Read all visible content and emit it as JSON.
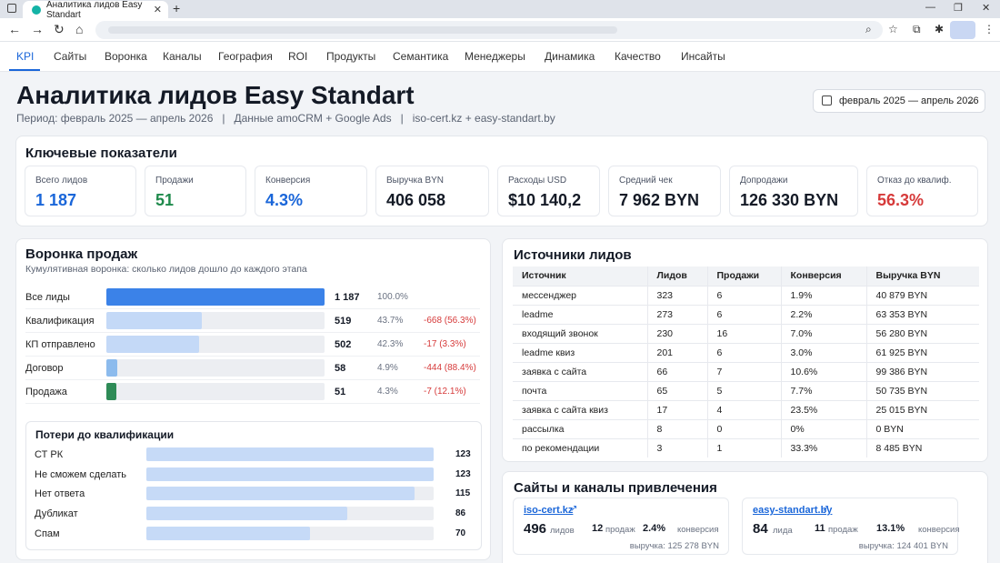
{
  "browser": {
    "tab_title": "Аналитика лидов Easy Standart",
    "tab_close": "✕",
    "new_tab": "+",
    "colors": {
      "favicon": "#14b3a6"
    }
  },
  "nav": {
    "tabs": [
      "KPI",
      "Сайты",
      "Воронка",
      "Каналы",
      "География",
      "ROI",
      "Продукты",
      "Семантика",
      "Менеджеры",
      "Динамика",
      "Качество",
      "Инсайты"
    ],
    "active": "KPI"
  },
  "header": {
    "title": "Аналитика лидов Easy Standart",
    "subtitle": "Период: февраль 2025 — апрель 2026   |   Данные amoCRM + Google Ads   |   iso-cert.kz + easy-standart.by",
    "date_range": "февраль 2025 — апрель 2026"
  },
  "kpi_section": {
    "title": "Ключевые показатели",
    "items": [
      {
        "label": "Всего лидов",
        "value": "1 187",
        "color": "#1a66d9"
      },
      {
        "label": "Продажи",
        "value": "51",
        "color": "#1f8a4c"
      },
      {
        "label": "Конверсия",
        "value": "4.3%",
        "color": "#1a66d9"
      },
      {
        "label": "Выручка BYN",
        "value": "406 058",
        "color": "#141a26"
      },
      {
        "label": "Расходы USD",
        "value": "$10 140,2",
        "color": "#141a26"
      },
      {
        "label": "Средний чек",
        "value": "7 962 BYN",
        "color": "#141a26"
      },
      {
        "label": "Допродажи",
        "value": "126 330 BYN",
        "color": "#141a26"
      },
      {
        "label": "Отказ до квалиф.",
        "value": "56.3%",
        "color": "#d63a3a"
      }
    ]
  },
  "funnel": {
    "title": "Воронка продаж",
    "subtitle": "Кумулятивная воронка: сколько лидов дошло до каждого этапа",
    "stages": [
      {
        "label": "Все лиды",
        "count": "1 187",
        "pct": "100.0%",
        "loss": "",
        "fraction": 1.0,
        "color": "#3b82e8"
      },
      {
        "label": "Квалификация",
        "count": "519",
        "pct": "43.7%",
        "loss": "-668 (56.3%)",
        "fraction": 0.437,
        "color": "#c4d9f7"
      },
      {
        "label": "КП отправлено",
        "count": "502",
        "pct": "42.3%",
        "loss": "-17 (3.3%)",
        "fraction": 0.423,
        "color": "#c4d9f7"
      },
      {
        "label": "Договор",
        "count": "58",
        "pct": "4.9%",
        "loss": "-444 (88.4%)",
        "fraction": 0.049,
        "color": "#8cbbed"
      },
      {
        "label": "Продажа",
        "count": "51",
        "pct": "4.3%",
        "loss": "-7 (12.1%)",
        "fraction": 0.043,
        "color": "#2e8b57"
      }
    ]
  },
  "losses": {
    "title": "Потери до квалификации",
    "items": [
      {
        "label": "СТ РК",
        "value": "123",
        "fraction": 1.0
      },
      {
        "label": "Не сможем сделать",
        "value": "123",
        "fraction": 1.0
      },
      {
        "label": "Нет ответа",
        "value": "115",
        "fraction": 0.935
      },
      {
        "label": "Дубликат",
        "value": "86",
        "fraction": 0.699
      },
      {
        "label": "Спам",
        "value": "70",
        "fraction": 0.569
      }
    ]
  },
  "sources": {
    "title": "Источники лидов",
    "columns": [
      "Источник",
      "Лидов",
      "Продажи",
      "Конверсия",
      "Выручка BYN"
    ],
    "rows": [
      [
        "мессенджер",
        "323",
        "6",
        "1.9%",
        "40 879 BYN"
      ],
      [
        "leadme",
        "273",
        "6",
        "2.2%",
        "63 353 BYN"
      ],
      [
        "входящий звонок",
        "230",
        "16",
        "7.0%",
        "56 280 BYN"
      ],
      [
        "leadme квиз",
        "201",
        "6",
        "3.0%",
        "61 925 BYN"
      ],
      [
        "заявка с сайта",
        "66",
        "7",
        "10.6%",
        "99 386 BYN"
      ],
      [
        "почта",
        "65",
        "5",
        "7.7%",
        "50 735 BYN"
      ],
      [
        "заявка с сайта квиз",
        "17",
        "4",
        "23.5%",
        "25 015 BYN"
      ],
      [
        "рассылка",
        "8",
        "0",
        "0%",
        "0 BYN"
      ],
      [
        "по рекомендации",
        "3",
        "1",
        "33.3%",
        "8 485 BYN"
      ]
    ]
  },
  "sites": {
    "title": "Сайты и каналы привлечения",
    "cards": [
      {
        "name": "iso-cert.kz",
        "leads": "496",
        "leads_label": "лидов",
        "sales": "12",
        "sales_label": "продаж",
        "conv": "2.4%",
        "conv_label": "конверсия",
        "revenue": "выручка: 125 278 BYN"
      },
      {
        "name": "easy-standart.by",
        "leads": "84",
        "leads_label": "лида",
        "sales": "11",
        "sales_label": "продаж",
        "conv": "13.1%",
        "conv_label": "конверсия",
        "revenue": "выручка: 124 401 BYN"
      }
    ]
  },
  "icons": [
    "browser-menu-icon",
    "favicon-icon",
    "back-icon",
    "forward-icon",
    "reload-icon",
    "home-icon",
    "search-icon",
    "star-icon",
    "extensions-icon",
    "puzzle-icon",
    "more-icon",
    "calendar-icon",
    "chevron-down-icon",
    "external-link-icon"
  ]
}
